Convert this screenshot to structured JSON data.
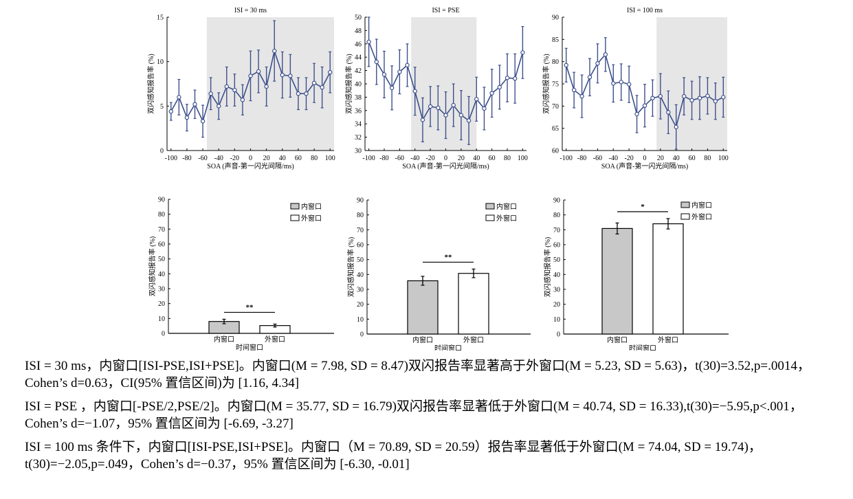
{
  "chart_data": [
    {
      "type": "line",
      "title": "ISI = 30 ms",
      "xlabel": "SOA (声音-第一闪光间隔/ms)",
      "ylabel": "双闪感知报告率 (%)",
      "ylim": [
        0,
        15
      ],
      "yticks": [
        "0",
        "5",
        "10",
        "15"
      ],
      "xticks": [
        "-100",
        "-80",
        "-60",
        "-40",
        "-20",
        "0",
        "20",
        "40",
        "60",
        "80",
        "100"
      ],
      "shaded_x": [
        -55,
        105
      ],
      "color": "#3d4f8c",
      "x": [
        -100,
        -90,
        -80,
        -70,
        -60,
        -50,
        -40,
        -30,
        -20,
        -10,
        0,
        10,
        20,
        30,
        40,
        50,
        60,
        70,
        80,
        90,
        100
      ],
      "y": [
        4.4,
        6.0,
        3.7,
        5.2,
        3.3,
        6.4,
        5.0,
        7.2,
        6.8,
        5.7,
        8.4,
        8.9,
        7.2,
        11.2,
        8.5,
        8.4,
        6.4,
        6.4,
        7.6,
        7.1,
        8.8
      ],
      "err": [
        1.0,
        2.0,
        1.5,
        1.6,
        1.8,
        1.8,
        1.5,
        2.2,
        1.8,
        1.7,
        2.8,
        2.4,
        2.2,
        3.4,
        2.6,
        2.4,
        1.8,
        1.8,
        2.2,
        2.3,
        2.3
      ]
    },
    {
      "type": "line",
      "title": "ISI = PSE",
      "xlabel": "SOA (声音-第一闪光间隔/ms)",
      "ylabel": "双闪感知报告率 (%)",
      "ylim": [
        30,
        50
      ],
      "yticks": [
        "30",
        "32",
        "34",
        "36",
        "38",
        "40",
        "42",
        "44",
        "46",
        "48",
        "50"
      ],
      "xticks": [
        "-100",
        "-80",
        "-60",
        "-40",
        "-20",
        "0",
        "20",
        "40",
        "60",
        "80",
        "100"
      ],
      "shaded_x": [
        -45,
        40
      ],
      "color": "#3d4f8c",
      "x": [
        -100,
        -90,
        -80,
        -70,
        -60,
        -50,
        -40,
        -30,
        -20,
        -10,
        0,
        10,
        20,
        30,
        40,
        50,
        60,
        70,
        80,
        90,
        100
      ],
      "y": [
        46.3,
        43.3,
        41.4,
        39.4,
        41.8,
        42.8,
        38.9,
        34.6,
        36.6,
        36.4,
        35.3,
        36.8,
        35.3,
        34.5,
        37.7,
        36.3,
        38.6,
        39.5,
        40.9,
        40.8,
        44.7
      ],
      "err": [
        3.7,
        3.4,
        3.5,
        3.3,
        3.3,
        3.2,
        3.6,
        3.3,
        3.0,
        3.3,
        3.5,
        3.2,
        3.7,
        3.6,
        3.3,
        3.2,
        3.6,
        3.3,
        3.6,
        3.7,
        3.9
      ]
    },
    {
      "type": "line",
      "title": "ISI = 100 ms",
      "xlabel": "SOA (声音-第一闪光间隔/ms)",
      "ylabel": "双闪感知报告率 (%)",
      "ylim": [
        60,
        90
      ],
      "yticks": [
        "60",
        "65",
        "70",
        "75",
        "80",
        "85",
        "90"
      ],
      "xticks": [
        "-100",
        "-80",
        "-60",
        "-40",
        "-20",
        "0",
        "20",
        "40",
        "60",
        "80",
        "100"
      ],
      "shaded_x": [
        15,
        105
      ],
      "color": "#3d4f8c",
      "x": [
        -100,
        -90,
        -80,
        -70,
        -60,
        -50,
        -40,
        -30,
        -20,
        -10,
        0,
        10,
        20,
        30,
        40,
        50,
        60,
        70,
        80,
        90,
        100
      ],
      "y": [
        79.2,
        73.6,
        72.2,
        76.5,
        79.6,
        81.6,
        75.1,
        75.4,
        74.9,
        68.2,
        70.1,
        71.8,
        72.2,
        68.6,
        65.3,
        72.2,
        71.3,
        71.8,
        72.3,
        71.1,
        72.0
      ],
      "err": [
        3.8,
        4.0,
        4.8,
        4.2,
        4.4,
        3.8,
        4.2,
        4.1,
        4.1,
        4.2,
        4.8,
        4.1,
        5.1,
        4.8,
        5.0,
        4.2,
        4.3,
        4.8,
        4.1,
        4.1,
        4.5
      ]
    },
    {
      "type": "bar",
      "xlabel": "时间窗口",
      "ylabel": "双闪感知报告率 (%)",
      "ylim": [
        0,
        90
      ],
      "yticks": [
        "0",
        "10",
        "20",
        "30",
        "40",
        "50",
        "60",
        "70",
        "80",
        "90"
      ],
      "categories": [
        "内窗口",
        "外窗口"
      ],
      "values": [
        7.98,
        5.23
      ],
      "errors": [
        1.5,
        1.0
      ],
      "fills": [
        "#c8c8c8",
        "#ffffff"
      ],
      "legend": [
        "内窗口",
        "外窗口"
      ],
      "significance": "**"
    },
    {
      "type": "bar",
      "xlabel": "时间窗口",
      "ylabel": "双闪感知报告率 (%)",
      "ylim": [
        0,
        90
      ],
      "yticks": [
        "0",
        "10",
        "20",
        "30",
        "40",
        "50",
        "60",
        "70",
        "80",
        "90"
      ],
      "categories": [
        "内窗口",
        "外窗口"
      ],
      "values": [
        35.77,
        40.74
      ],
      "errors": [
        3.0,
        2.9
      ],
      "fills": [
        "#c8c8c8",
        "#ffffff"
      ],
      "legend": [
        "内窗口",
        "外窗口"
      ],
      "significance": "**"
    },
    {
      "type": "bar",
      "xlabel": "时间窗口",
      "ylabel": "双闪感知报告率 (%)",
      "ylim": [
        0,
        90
      ],
      "yticks": [
        "0",
        "10",
        "20",
        "30",
        "40",
        "50",
        "60",
        "70",
        "80",
        "90"
      ],
      "categories": [
        "内窗口",
        "外窗口"
      ],
      "values": [
        70.89,
        74.04
      ],
      "errors": [
        3.7,
        3.5
      ],
      "fills": [
        "#c8c8c8",
        "#ffffff"
      ],
      "legend": [
        "内窗口",
        "外窗口"
      ],
      "significance": "*"
    }
  ],
  "captions": [
    "ISI = 30 ms，内窗口[ISI-PSE,ISI+PSE]。内窗口(M = 7.98, SD = 8.47)双闪报告率显著高于外窗口(M = 5.23, SD = 5.63)，t(30)=3.52,p=.0014，Cohen’s d=0.63，CI(95% 置信区间)为 [1.16, 4.34]",
    "ISI = PSE ，内窗口[-PSE/2,PSE/2]。内窗口(M = 35.77, SD = 16.79)双闪报告率显著低于外窗口(M = 40.74, SD = 16.33),t(30)=−5.95,p<.001，Cohen’s d=−1.07，95% 置信区间为 [-6.69, -3.27]",
    "ISI = 100 ms 条件下，内窗口[ISI-PSE,ISI+PSE]。内窗口（M = 70.89, SD = 20.59）报告率显著低于外窗口(M = 74.04, SD = 19.74)，t(30)=−2.05,p=.049，Cohen’s d=−0.37，95% 置信区间为 [-6.30, -0.01]"
  ]
}
